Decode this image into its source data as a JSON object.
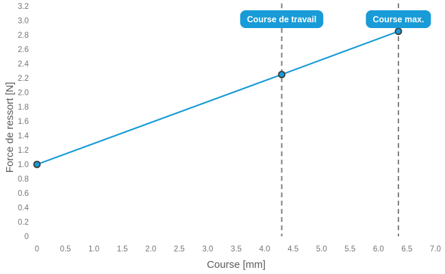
{
  "page": {
    "background": "#ffffff"
  },
  "chart_data": {
    "type": "line",
    "title": "",
    "xlabel": "Course [mm]",
    "ylabel": "Force de ressort [N]",
    "xlim": [
      0,
      7.0
    ],
    "ylim": [
      0,
      3.2
    ],
    "grid": false,
    "legend": false,
    "axis_lines": false,
    "xticks": {
      "values": [
        0,
        0.5,
        1.0,
        1.5,
        2.0,
        2.5,
        3.0,
        3.5,
        4.0,
        4.5,
        5.0,
        5.5,
        6.0,
        6.5,
        7.0
      ],
      "labels": [
        "0",
        "0.5",
        "1.0",
        "1.5",
        "2.0",
        "2.5",
        "3.0",
        "3.5",
        "4.0",
        "4.5",
        "5.0",
        "5.5",
        "6.0",
        "6.5",
        "7.0"
      ]
    },
    "yticks": {
      "values": [
        0,
        0.2,
        0.4,
        0.6,
        0.8,
        1.0,
        1.2,
        1.4,
        1.6,
        1.8,
        2.0,
        2.2,
        2.4,
        2.6,
        2.8,
        3.0,
        3.2
      ],
      "labels": [
        "0",
        "0.2",
        "0.4",
        "0.6",
        "0.8",
        "1.0",
        "1.2",
        "1.4",
        "1.6",
        "1.8",
        "2.0",
        "2.2",
        "2.4",
        "2.6",
        "2.8",
        "3.0",
        "3.2"
      ]
    },
    "series": [
      {
        "name": "Force de ressort",
        "x": [
          0,
          4.3,
          6.35
        ],
        "y": [
          1.0,
          2.25,
          2.85
        ],
        "marker": "circle"
      }
    ],
    "annotations": [
      {
        "label": "Course de travail",
        "x": 4.3
      },
      {
        "label": "Course max.",
        "x": 6.35
      }
    ],
    "colors": {
      "line": "#189bd7",
      "marker_fill": "#189bd7",
      "marker_stroke": "#3b3b3a",
      "badge_bg": "#189bd7",
      "badge_text": "#ffffff",
      "dashed_line": "#7f7f7f",
      "tick_text": "#747474",
      "axis_title_text": "#595959",
      "background": "#ffffff"
    }
  }
}
